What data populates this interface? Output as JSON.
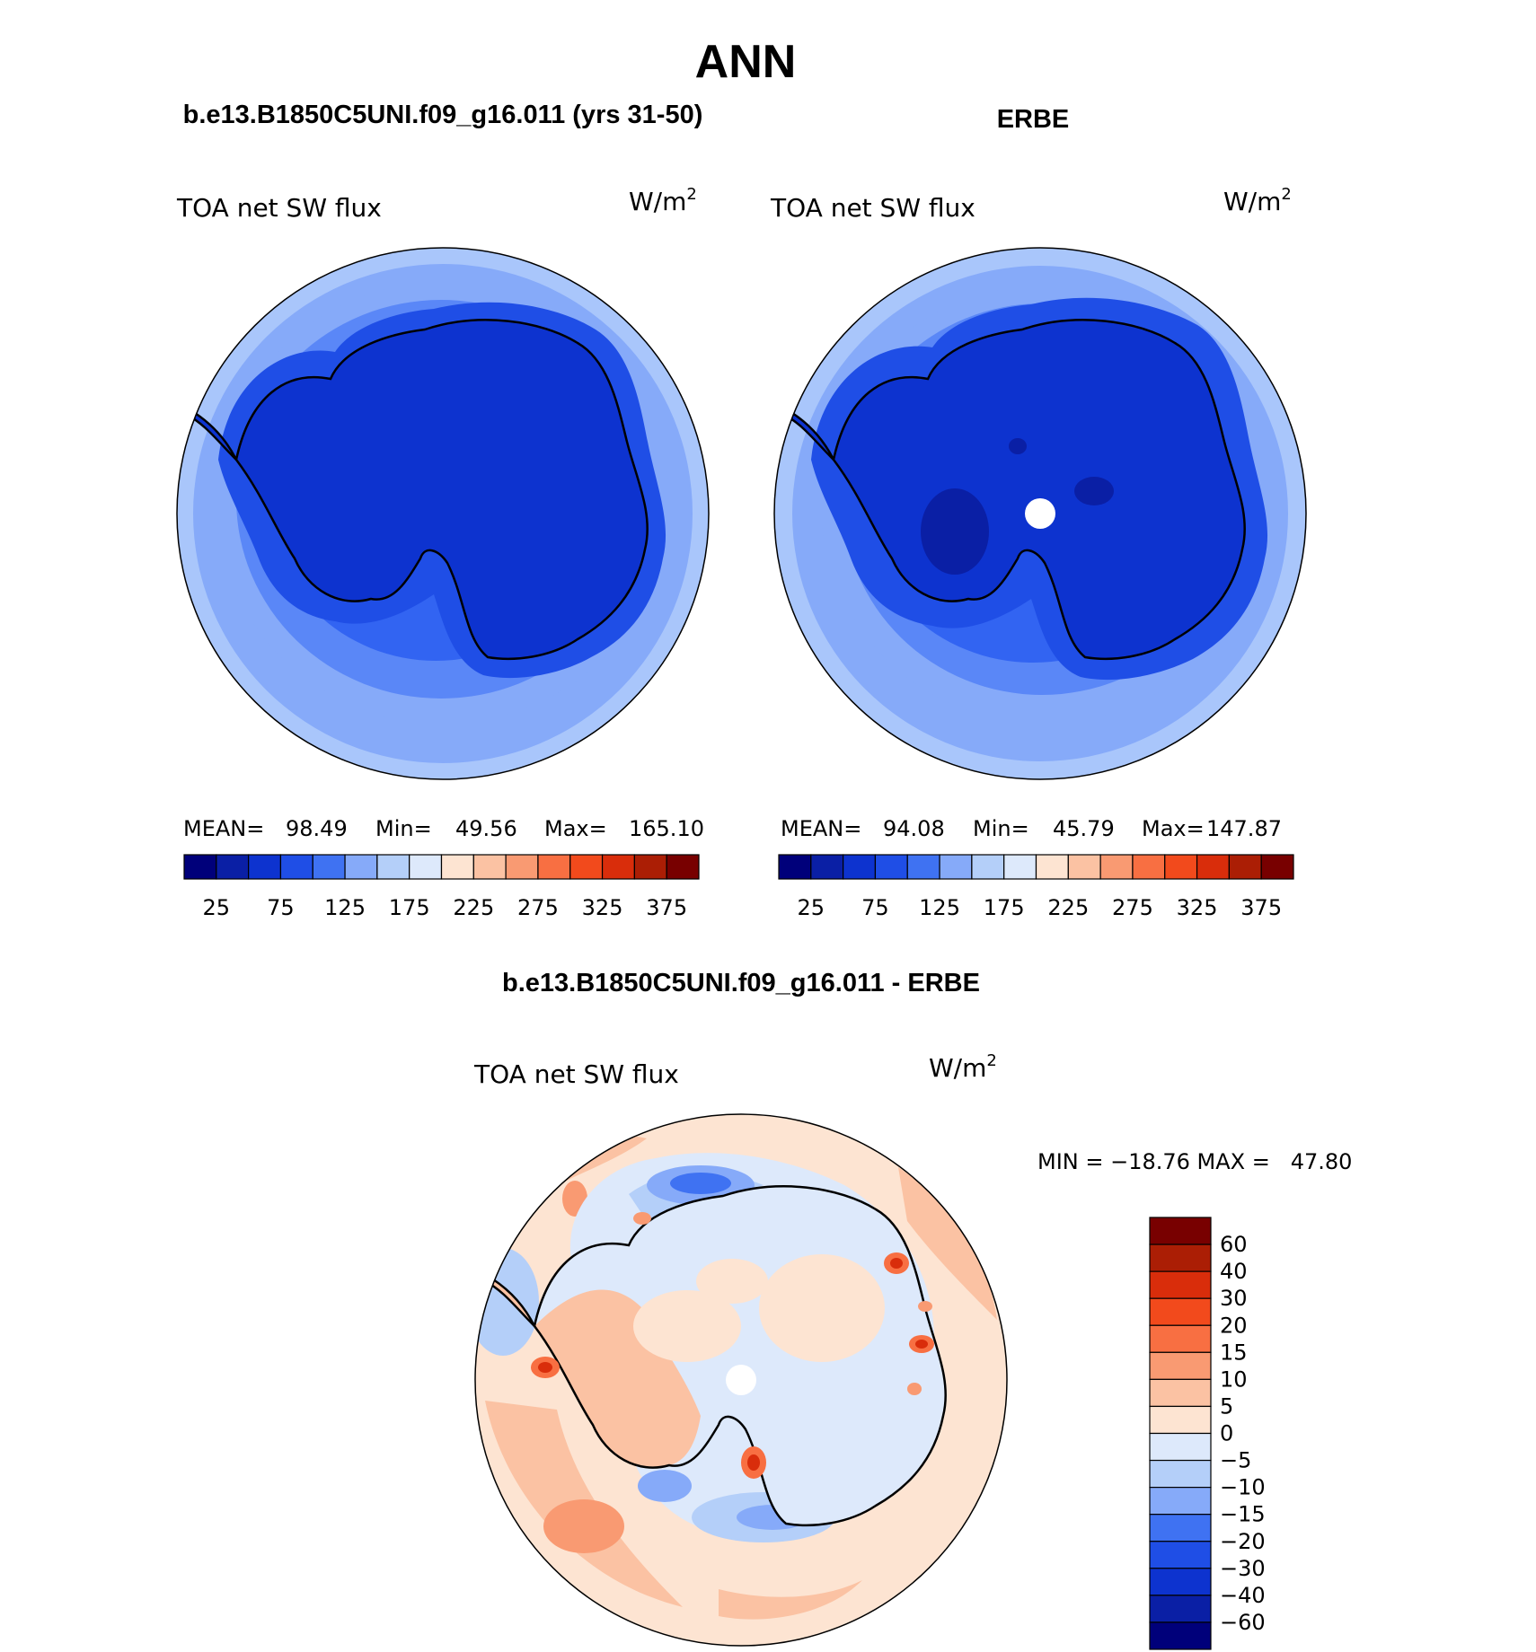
{
  "figure": {
    "title": "ANN",
    "panel_left_title": "b.e13.B1850C5UNI.f09_g16.011 (yrs 31-50)",
    "panel_right_title": "ERBE",
    "panel_diff_title": "b.e13.B1850C5UNI.f09_g16.011 - ERBE"
  },
  "chart_data": [
    {
      "type": "heatmap",
      "projection": "south-polar-stereographic",
      "variable": "TOA net SW flux",
      "units": "W/m",
      "units_sup": "2",
      "stats": {
        "mean_label": "MEAN=",
        "mean": "98.49",
        "min_label": "Min=",
        "min": "49.56",
        "max_label": "Max=",
        "max": "165.10"
      },
      "field_levels": [
        "#1f4ee6",
        "#3264f2",
        "#5a87f7",
        "#86aaf9",
        "#a9c6fb"
      ],
      "colorbar": {
        "orientation": "horizontal",
        "tick_labels": [
          "25",
          "75",
          "125",
          "175",
          "225",
          "275",
          "325",
          "375"
        ],
        "colors": [
          "#00007a",
          "#0a1fa5",
          "#0d33cf",
          "#1f4ee6",
          "#3f72f2",
          "#86aaf9",
          "#b4cff9",
          "#dde9fb",
          "#fde4d2",
          "#fbc2a3",
          "#f99a72",
          "#f86f42",
          "#f24a1c",
          "#d92d0b",
          "#ab1e05",
          "#780000"
        ]
      }
    },
    {
      "type": "heatmap",
      "projection": "south-polar-stereographic",
      "variable": "TOA net SW flux",
      "units": "W/m",
      "units_sup": "2",
      "stats": {
        "mean_label": "MEAN=",
        "mean": "94.08",
        "min_label": "Min=",
        "min": "45.79",
        "max_label": "Max=",
        "max": "147.87"
      },
      "missing_pole": true,
      "colorbar": {
        "orientation": "horizontal",
        "tick_labels": [
          "25",
          "75",
          "125",
          "175",
          "225",
          "275",
          "325",
          "375"
        ],
        "colors": [
          "#00007a",
          "#0a1fa5",
          "#0d33cf",
          "#1f4ee6",
          "#3f72f2",
          "#86aaf9",
          "#b4cff9",
          "#dde9fb",
          "#fde4d2",
          "#fbc2a3",
          "#f99a72",
          "#f86f42",
          "#f24a1c",
          "#d92d0b",
          "#ab1e05",
          "#780000"
        ]
      }
    },
    {
      "type": "heatmap",
      "projection": "south-polar-stereographic",
      "variable": "TOA net SW flux",
      "units": "W/m",
      "units_sup": "2",
      "stats_text": "MIN = −18.76 MAX =   47.80",
      "missing_pole": true,
      "colorbar": {
        "orientation": "vertical",
        "tick_labels_top_down": [
          "60",
          "40",
          "30",
          "20",
          "15",
          "10",
          "5",
          "0",
          "−5",
          "−10",
          "−15",
          "−20",
          "−30",
          "−40",
          "−60"
        ],
        "colors_top_down": [
          "#780000",
          "#ab1e05",
          "#d92d0b",
          "#f24a1c",
          "#f86f42",
          "#f99a72",
          "#fbc2a3",
          "#fde4d2",
          "#dde9fb",
          "#b4cff9",
          "#86aaf9",
          "#3f72f2",
          "#1f4ee6",
          "#0d33cf",
          "#0a1fa5",
          "#00007a"
        ]
      }
    }
  ]
}
